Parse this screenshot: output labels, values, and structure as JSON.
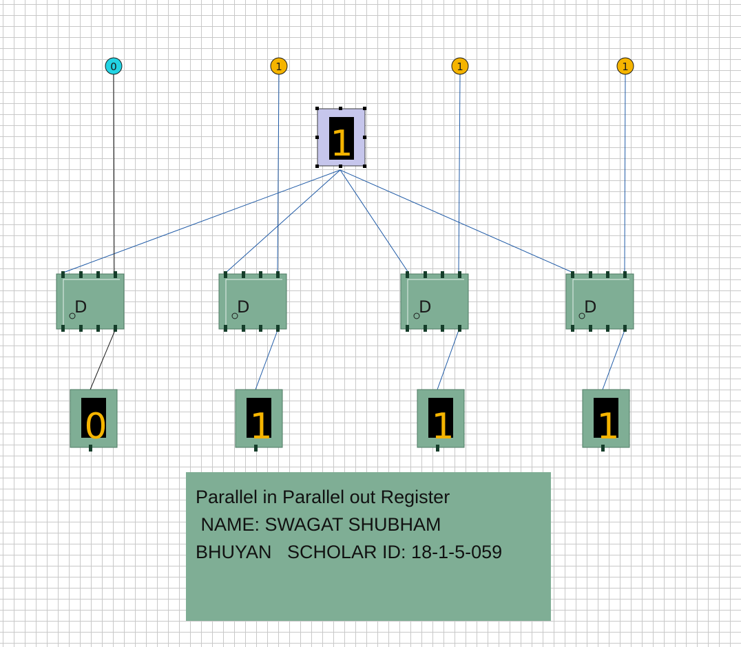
{
  "inputs": [
    {
      "value": "0",
      "color": "#22d3e3"
    },
    {
      "value": "1",
      "color": "#f5b400"
    },
    {
      "value": "1",
      "color": "#f5b400"
    },
    {
      "value": "1",
      "color": "#f5b400"
    }
  ],
  "clock": {
    "value": "1"
  },
  "flip_flops": [
    {
      "label": "D"
    },
    {
      "label": "D"
    },
    {
      "label": "D"
    },
    {
      "label": "D"
    }
  ],
  "outputs": [
    {
      "value": "0"
    },
    {
      "value": "1"
    },
    {
      "value": "1"
    },
    {
      "value": "1"
    }
  ],
  "note": {
    "lines": [
      "Parallel in Parallel out Register",
      " NAME: SWAGAT SHUBHAM",
      "BHUYAN   SCHOLAR ID: 18-1-5-059"
    ]
  },
  "colors": {
    "wire": "#1f5aa6",
    "component_fill": "#7fae95",
    "clock_fill": "#c6c6ec",
    "digit": "#f5b400"
  }
}
